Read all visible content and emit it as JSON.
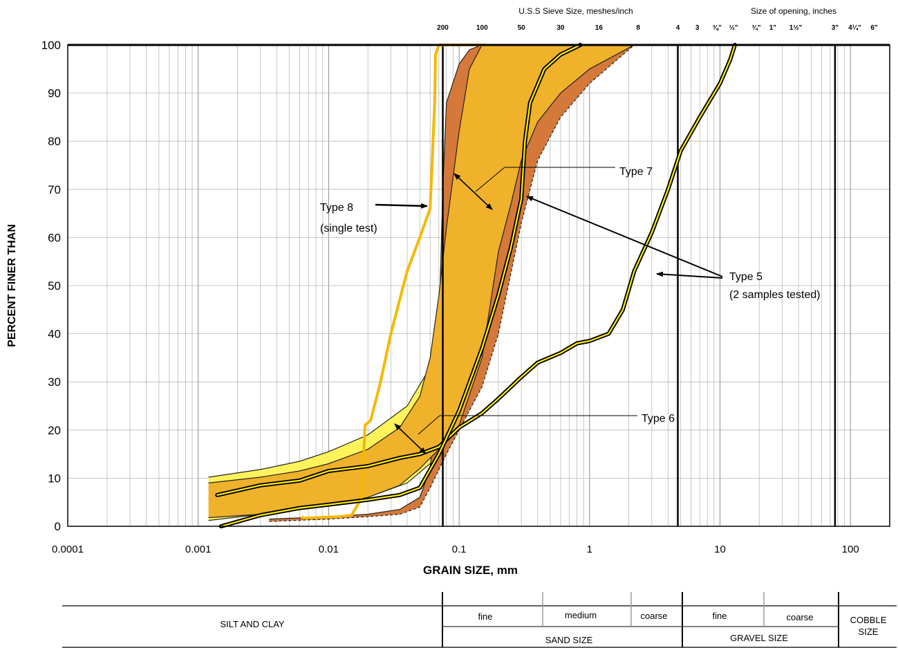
{
  "chart_data": {
    "type": "line",
    "x_scale": "log",
    "xlim": [
      0.0001,
      200
    ],
    "ylim": [
      0,
      100
    ],
    "grid": true,
    "xlabel": "GRAIN SIZE, mm",
    "ylabel": "PERCENT FINER THAN",
    "x_ticks": [
      {
        "v": 0.0001,
        "label": "0.0001"
      },
      {
        "v": 0.001,
        "label": "0.001"
      },
      {
        "v": 0.01,
        "label": "0.01"
      },
      {
        "v": 0.1,
        "label": "0.1"
      },
      {
        "v": 1,
        "label": "1"
      },
      {
        "v": 10,
        "label": "10"
      },
      {
        "v": 100,
        "label": "100"
      }
    ],
    "y_ticks": [
      0,
      10,
      20,
      30,
      40,
      50,
      60,
      70,
      80,
      90,
      100
    ],
    "sieve_header": "U.S.S Sieve Size, meshes/inch",
    "opening_header": "Size of opening, inches",
    "sieves": [
      {
        "label": "200",
        "x": 0.075,
        "heavy": true
      },
      {
        "label": "100",
        "x": 0.15
      },
      {
        "label": "50",
        "x": 0.3
      },
      {
        "label": "30",
        "x": 0.6
      },
      {
        "label": "16",
        "x": 1.18
      },
      {
        "label": "8",
        "x": 2.36
      },
      {
        "label": "4",
        "x": 4.75,
        "heavy": true
      },
      {
        "label": "3",
        "x": 6.7
      },
      {
        "label": "⅜\"",
        "x": 9.5
      },
      {
        "label": "½\"",
        "x": 12.7
      },
      {
        "label": "¾\"",
        "x": 19
      },
      {
        "label": "1\"",
        "x": 25.4
      },
      {
        "label": "1½\"",
        "x": 38.1
      },
      {
        "label": "3\"",
        "x": 76.2,
        "heavy": true
      },
      {
        "label": "4¼\"",
        "x": 108
      },
      {
        "label": "6\"",
        "x": 152
      }
    ],
    "bands": [
      {
        "name": "Type 6",
        "fill": "#fff35c",
        "upper": [
          [
            0.0012,
            10.2
          ],
          [
            0.003,
            11.8
          ],
          [
            0.006,
            13.5
          ],
          [
            0.01,
            15.5
          ],
          [
            0.02,
            19
          ],
          [
            0.04,
            25
          ],
          [
            0.06,
            33
          ],
          [
            0.07,
            42
          ],
          [
            0.08,
            55
          ],
          [
            0.1,
            68
          ],
          [
            0.13,
            80
          ],
          [
            0.16,
            90
          ],
          [
            0.18,
            100
          ],
          [
            2.2,
            100
          ]
        ],
        "lower": [
          [
            0.0012,
            1.2
          ],
          [
            0.003,
            2.5
          ],
          [
            0.006,
            3.5
          ],
          [
            0.01,
            4.5
          ],
          [
            0.02,
            6
          ],
          [
            0.04,
            9
          ],
          [
            0.06,
            13
          ],
          [
            0.08,
            20
          ],
          [
            0.1,
            30
          ],
          [
            0.15,
            45
          ],
          [
            0.2,
            57
          ],
          [
            0.3,
            70
          ],
          [
            0.4,
            78
          ],
          [
            0.7,
            90
          ],
          [
            1,
            95
          ],
          [
            2.2,
            100
          ]
        ]
      },
      {
        "name": "Type 7",
        "fill": "#d4793a",
        "upper": [
          [
            0.0035,
            1.5
          ],
          [
            0.01,
            2
          ],
          [
            0.02,
            2.5
          ],
          [
            0.035,
            3.5
          ],
          [
            0.05,
            6
          ],
          [
            0.06,
            12
          ],
          [
            0.065,
            22
          ],
          [
            0.07,
            40
          ],
          [
            0.075,
            70
          ],
          [
            0.08,
            88
          ],
          [
            0.1,
            96
          ],
          [
            0.12,
            99
          ],
          [
            0.15,
            100
          ],
          [
            2.2,
            100
          ]
        ],
        "lower": [
          [
            0.0035,
            1
          ],
          [
            0.01,
            1.5
          ],
          [
            0.02,
            2
          ],
          [
            0.035,
            2.5
          ],
          [
            0.05,
            4
          ],
          [
            0.06,
            8
          ],
          [
            0.08,
            15
          ],
          [
            0.1,
            20
          ],
          [
            0.15,
            29
          ],
          [
            0.2,
            40
          ],
          [
            0.3,
            63
          ],
          [
            0.4,
            76
          ],
          [
            0.6,
            85
          ],
          [
            1,
            92
          ],
          [
            2.2,
            100
          ]
        ]
      },
      {
        "name": "Type 7 inner",
        "fill": "#f0b22a",
        "upper": [
          [
            0.0012,
            9
          ],
          [
            0.003,
            10.2
          ],
          [
            0.006,
            11.5
          ],
          [
            0.01,
            13
          ],
          [
            0.02,
            16
          ],
          [
            0.035,
            20.5
          ],
          [
            0.05,
            27
          ],
          [
            0.06,
            35
          ],
          [
            0.07,
            48
          ],
          [
            0.08,
            62
          ],
          [
            0.1,
            82
          ],
          [
            0.12,
            95
          ],
          [
            0.15,
            100
          ],
          [
            2.2,
            100
          ]
        ],
        "lower": [
          [
            0.0012,
            1.8
          ],
          [
            0.003,
            2.5
          ],
          [
            0.006,
            3.5
          ],
          [
            0.01,
            4.5
          ],
          [
            0.02,
            6
          ],
          [
            0.035,
            8.5
          ],
          [
            0.05,
            12
          ],
          [
            0.07,
            16
          ],
          [
            0.1,
            21
          ],
          [
            0.15,
            35
          ],
          [
            0.2,
            57
          ],
          [
            0.25,
            67
          ],
          [
            0.3,
            76
          ],
          [
            0.4,
            84
          ],
          [
            0.6,
            90
          ],
          [
            1,
            95
          ],
          [
            2.2,
            100
          ]
        ]
      }
    ],
    "series": [
      {
        "name": "Type 8",
        "color": "#f5b800",
        "points": [
          [
            0.0062,
            2
          ],
          [
            0.0064,
            1.7
          ],
          [
            0.012,
            2
          ],
          [
            0.015,
            2.3
          ],
          [
            0.018,
            6
          ],
          [
            0.019,
            21
          ],
          [
            0.021,
            22
          ],
          [
            0.025,
            30
          ],
          [
            0.03,
            40
          ],
          [
            0.04,
            53
          ],
          [
            0.05,
            60
          ],
          [
            0.06,
            66
          ],
          [
            0.065,
            88
          ],
          [
            0.066,
            98
          ],
          [
            0.07,
            100
          ],
          [
            0.16,
            100
          ]
        ]
      },
      {
        "name": "Type 5 sample 1",
        "color": "#fff000",
        "points": [
          [
            0.0014,
            6.5
          ],
          [
            0.003,
            8.5
          ],
          [
            0.006,
            9.5
          ],
          [
            0.01,
            11.5
          ],
          [
            0.02,
            12.5
          ],
          [
            0.035,
            14.2
          ],
          [
            0.05,
            15
          ],
          [
            0.07,
            16.5
          ],
          [
            0.1,
            20.5
          ],
          [
            0.15,
            23.5
          ],
          [
            0.2,
            26.5
          ],
          [
            0.3,
            31
          ],
          [
            0.4,
            34
          ],
          [
            0.6,
            36
          ],
          [
            0.8,
            38
          ],
          [
            1,
            38.5
          ],
          [
            1.4,
            40
          ],
          [
            1.8,
            45
          ],
          [
            2.2,
            53
          ],
          [
            3,
            61
          ],
          [
            4,
            70
          ],
          [
            5,
            78
          ],
          [
            7,
            85
          ],
          [
            10,
            92
          ],
          [
            12,
            97
          ],
          [
            13,
            100
          ]
        ]
      },
      {
        "name": "Type 5 sample 2",
        "color": "#fff000",
        "points": [
          [
            0.0015,
            0
          ],
          [
            0.003,
            2.3
          ],
          [
            0.006,
            3.8
          ],
          [
            0.01,
            4.5
          ],
          [
            0.02,
            5.5
          ],
          [
            0.035,
            6.5
          ],
          [
            0.05,
            8
          ],
          [
            0.07,
            15
          ],
          [
            0.1,
            24
          ],
          [
            0.15,
            37
          ],
          [
            0.2,
            48
          ],
          [
            0.25,
            58
          ],
          [
            0.3,
            68
          ],
          [
            0.32,
            80
          ],
          [
            0.35,
            88
          ],
          [
            0.45,
            95
          ],
          [
            0.6,
            98
          ],
          [
            0.85,
            100
          ]
        ]
      }
    ],
    "annotations": [
      {
        "lines": [
          "Type 8",
          "(single test)"
        ]
      },
      {
        "lines": [
          "Type 7"
        ]
      },
      {
        "lines": [
          "Type 6"
        ]
      },
      {
        "lines": [
          "Type 5",
          "(2 samples tested)"
        ]
      }
    ],
    "classification": {
      "silt_clay": "SILT AND CLAY",
      "sand": {
        "label": "SAND SIZE",
        "fine": "fine",
        "medium": "medium",
        "coarse": "coarse"
      },
      "gravel": {
        "label": "GRAVEL SIZE",
        "fine": "fine",
        "coarse": "coarse"
      },
      "cobble": [
        "COBBLE",
        "SIZE"
      ]
    }
  }
}
